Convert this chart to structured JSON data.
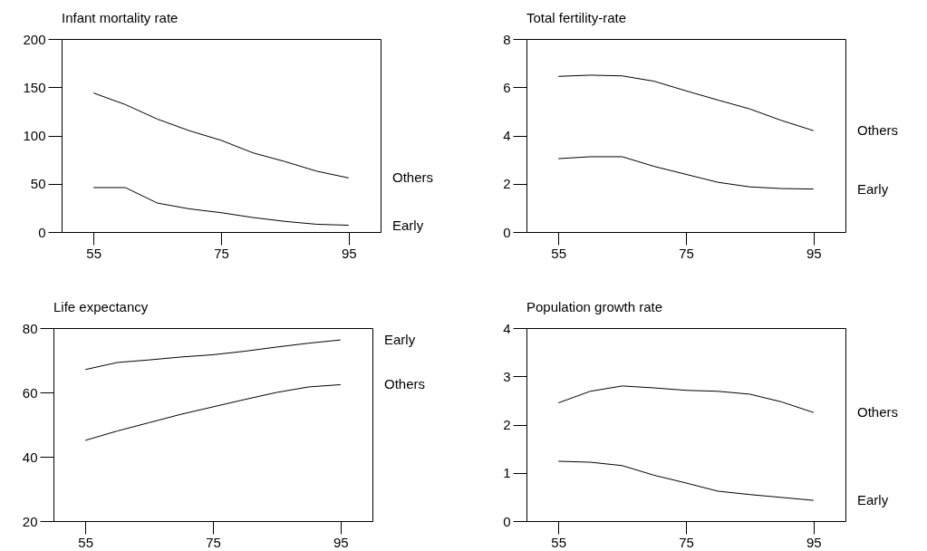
{
  "chart_data": [
    {
      "type": "line",
      "title": "Infant mortality rate",
      "x": [
        55,
        60,
        65,
        70,
        75,
        80,
        85,
        90,
        95
      ],
      "xlim": [
        50,
        100
      ],
      "xticks": [
        55,
        75,
        95
      ],
      "ylim": [
        0,
        200
      ],
      "yticks": [
        0,
        50,
        100,
        150,
        200
      ],
      "grid": false,
      "legend": false,
      "series": [
        {
          "name": "Others",
          "color": "#000000",
          "values": [
            144,
            132,
            117,
            105,
            95,
            82,
            73,
            63,
            56
          ]
        },
        {
          "name": "Early",
          "color": "#000000",
          "values": [
            46,
            46,
            30,
            24,
            20,
            15,
            11,
            8,
            7
          ]
        }
      ]
    },
    {
      "type": "line",
      "title": "Total fertility-rate",
      "x": [
        55,
        60,
        65,
        70,
        75,
        80,
        85,
        90,
        95
      ],
      "xlim": [
        50,
        100
      ],
      "xticks": [
        55,
        75,
        95
      ],
      "ylim": [
        0,
        8
      ],
      "yticks": [
        0,
        2,
        4,
        6,
        8
      ],
      "grid": false,
      "legend": false,
      "series": [
        {
          "name": "Others",
          "color": "#000000",
          "values": [
            6.45,
            6.5,
            6.47,
            6.25,
            5.85,
            5.47,
            5.1,
            4.62,
            4.2
          ]
        },
        {
          "name": "Early",
          "color": "#000000",
          "values": [
            3.04,
            3.12,
            3.12,
            2.72,
            2.39,
            2.06,
            1.87,
            1.8,
            1.78
          ]
        }
      ]
    },
    {
      "type": "line",
      "title": "Life expectancy",
      "x": [
        55,
        60,
        65,
        70,
        75,
        80,
        85,
        90,
        95
      ],
      "xlim": [
        50,
        100
      ],
      "xticks": [
        55,
        75,
        95
      ],
      "ylim": [
        20,
        80
      ],
      "yticks": [
        20,
        40,
        60,
        80
      ],
      "grid": false,
      "legend": false,
      "series": [
        {
          "name": "Early",
          "color": "#000000",
          "values": [
            67.1,
            69.3,
            70.1,
            71.0,
            71.7,
            72.8,
            74.1,
            75.3,
            76.3
          ]
        },
        {
          "name": "Others",
          "color": "#000000",
          "values": [
            45.1,
            48.0,
            50.6,
            53.2,
            55.5,
            57.8,
            60.0,
            61.7,
            62.4
          ]
        }
      ]
    },
    {
      "type": "line",
      "title": "Population growth rate",
      "x": [
        55,
        60,
        65,
        70,
        75,
        80,
        85,
        90,
        95
      ],
      "xlim": [
        50,
        100
      ],
      "xticks": [
        55,
        75,
        95
      ],
      "ylim": [
        0,
        4
      ],
      "yticks": [
        0,
        1,
        2,
        3,
        4
      ],
      "grid": false,
      "legend": false,
      "series": [
        {
          "name": "Others",
          "color": "#000000",
          "values": [
            2.45,
            2.69,
            2.8,
            2.76,
            2.71,
            2.69,
            2.63,
            2.47,
            2.25
          ]
        },
        {
          "name": "Early",
          "color": "#000000",
          "values": [
            1.24,
            1.22,
            1.15,
            0.95,
            0.79,
            0.62,
            0.55,
            0.49,
            0.43
          ]
        }
      ]
    }
  ]
}
